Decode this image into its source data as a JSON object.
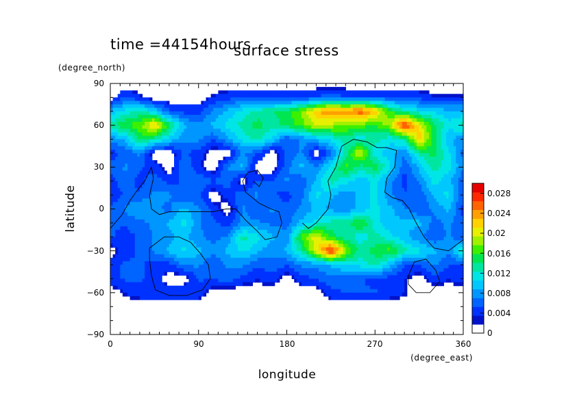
{
  "chart_data": {
    "type": "heatmap",
    "title": "surface stress",
    "time_label": "time =44154hours",
    "xlabel": "longitude",
    "ylabel": "latitude",
    "x_unit": "(degree_east)",
    "y_unit": "(degree_north)",
    "xlim": [
      0,
      360
    ],
    "ylim": [
      -90,
      90
    ],
    "x_ticks": [
      "0",
      "90",
      "180",
      "270",
      "360"
    ],
    "y_ticks": [
      "90",
      "60",
      "30",
      "0",
      "−30",
      "−60",
      "−90"
    ],
    "colorbar": {
      "range": [
        0,
        0.03
      ],
      "tick_labels": [
        "0",
        "0.004",
        "0.008",
        "0.012",
        "0.016",
        "0.02",
        "0.024",
        "0.028"
      ],
      "colors": [
        "#ffffff",
        "#0012c8",
        "#0032ff",
        "#0064ff",
        "#0096ff",
        "#00c8ff",
        "#00e6e6",
        "#00e6a0",
        "#00e650",
        "#3cf000",
        "#a0f000",
        "#e6f000",
        "#ffd200",
        "#ffa000",
        "#ff6400",
        "#ff2800",
        "#e60000"
      ]
    },
    "grid_lon_step": 15,
    "grid_lat_step": 10,
    "grid_lats": [
      90,
      80,
      70,
      60,
      50,
      40,
      30,
      20,
      10,
      0,
      -10,
      -20,
      -30,
      -40,
      -50,
      -60,
      -70,
      -80,
      -90
    ],
    "values": [
      [
        0,
        0,
        0,
        0,
        0,
        0,
        0,
        0,
        0,
        0,
        0,
        0,
        0,
        0,
        0,
        0,
        0,
        0,
        0,
        0,
        0,
        0,
        0,
        0,
        0
      ],
      [
        0,
        0.004,
        0.002,
        0,
        0,
        0,
        0,
        0.002,
        0.003,
        0.004,
        0.004,
        0.003,
        0.003,
        0.003,
        0.004,
        0.005,
        0.004,
        0.004,
        0.004,
        0.004,
        0.003,
        0.003,
        0.002,
        0.002,
        0.002
      ],
      [
        0.008,
        0.01,
        0.012,
        0.009,
        0.004,
        0.003,
        0.003,
        0.006,
        0.008,
        0.01,
        0.012,
        0.013,
        0.014,
        0.017,
        0.022,
        0.025,
        0.024,
        0.026,
        0.022,
        0.015,
        0.012,
        0.01,
        0.009,
        0.008,
        0.008
      ],
      [
        0.012,
        0.015,
        0.016,
        0.022,
        0.014,
        0.008,
        0.006,
        0.008,
        0.01,
        0.012,
        0.014,
        0.012,
        0.014,
        0.016,
        0.019,
        0.018,
        0.017,
        0.016,
        0.015,
        0.018,
        0.028,
        0.02,
        0.014,
        0.01,
        0.012
      ],
      [
        0.006,
        0.008,
        0.014,
        0.012,
        0.009,
        0.006,
        0.006,
        0.004,
        0.007,
        0.01,
        0.012,
        0.009,
        0.004,
        0.006,
        0.008,
        0.01,
        0.012,
        0.01,
        0.012,
        0.01,
        0.012,
        0.022,
        0.014,
        0.008,
        0.006
      ],
      [
        0.003,
        0.004,
        0.006,
        0,
        0,
        0.004,
        0.003,
        0,
        0,
        0.006,
        0.004,
        0,
        0.004,
        0.006,
        0,
        0.005,
        0.012,
        0.02,
        0.01,
        0.008,
        0.006,
        0.012,
        0.014,
        0.01,
        0.005
      ],
      [
        0.004,
        0.006,
        0.004,
        0.003,
        0,
        0.006,
        0.002,
        0,
        0.006,
        0.008,
        0,
        0,
        0.005,
        0.008,
        0.006,
        0.01,
        0.016,
        0.012,
        0.014,
        0.01,
        0.004,
        0.008,
        0.012,
        0.01,
        0.006
      ],
      [
        0.003,
        0.005,
        0.003,
        0.005,
        0.003,
        0.004,
        0.006,
        0.004,
        0.005,
        0,
        0.004,
        0.004,
        0.006,
        0.004,
        0.008,
        0.012,
        0.01,
        0.008,
        0.01,
        0.006,
        0.003,
        0.006,
        0.01,
        0.008,
        0.004
      ],
      [
        0.002,
        0.004,
        0.004,
        0.006,
        0.006,
        0.004,
        0.004,
        0,
        0.003,
        0.005,
        0.006,
        0.004,
        0.003,
        0.005,
        0.01,
        0.008,
        0.006,
        0.008,
        0.01,
        0.006,
        0.004,
        0.004,
        0.008,
        0.01,
        0.004
      ],
      [
        0.004,
        0.006,
        0.008,
        0.006,
        0.005,
        0.008,
        0.006,
        0.003,
        0,
        0.006,
        0.004,
        0.006,
        0.004,
        0.006,
        0.008,
        0.007,
        0.006,
        0.008,
        0.01,
        0.008,
        0.006,
        0.004,
        0.006,
        0.008,
        0.003
      ],
      [
        0.004,
        0.004,
        0.005,
        0.006,
        0.008,
        0.01,
        0.006,
        0.004,
        0.003,
        0.006,
        0.006,
        0.005,
        0.005,
        0.008,
        0.01,
        0.012,
        0.012,
        0.016,
        0.01,
        0.008,
        0.008,
        0.008,
        0.005,
        0.006,
        0.004
      ],
      [
        0.004,
        0.003,
        0.004,
        0.006,
        0.007,
        0.008,
        0.006,
        0.005,
        0.006,
        0.012,
        0.01,
        0.008,
        0.006,
        0.016,
        0.02,
        0.014,
        0.012,
        0.01,
        0.012,
        0.01,
        0.008,
        0.006,
        0.004,
        0.006,
        0.004
      ],
      [
        0,
        0.003,
        0.004,
        0.006,
        0.008,
        0.01,
        0.008,
        0.006,
        0.008,
        0.01,
        0.008,
        0.006,
        0.008,
        0.012,
        0.02,
        0.028,
        0.018,
        0.012,
        0.014,
        0.016,
        0.012,
        0.01,
        0.008,
        0.006,
        0.012
      ],
      [
        0.003,
        0.004,
        0.004,
        0.003,
        0.003,
        0.006,
        0.006,
        0.004,
        0.006,
        0.006,
        0.004,
        0.005,
        0.004,
        0.006,
        0.006,
        0.008,
        0.01,
        0.01,
        0.012,
        0.008,
        0.004,
        0.004,
        0.006,
        0.004,
        0.003
      ],
      [
        0.003,
        0.004,
        0.004,
        0.003,
        0,
        0,
        0.004,
        0.004,
        0.005,
        0.003,
        0.002,
        0.003,
        0,
        0.003,
        0.004,
        0.005,
        0.004,
        0.004,
        0.003,
        0.003,
        0.002,
        0,
        0.003,
        0.002,
        0.003
      ],
      [
        0,
        0.002,
        0.003,
        0.003,
        0.003,
        0.004,
        0.003,
        0,
        0,
        0,
        0,
        0,
        0,
        0,
        0,
        0.003,
        0.004,
        0.004,
        0.004,
        0.003,
        0.002,
        0,
        0,
        0,
        0
      ],
      [
        0,
        0,
        0,
        0,
        0,
        0,
        0,
        0,
        0,
        0,
        0,
        0,
        0,
        0,
        0,
        0,
        0,
        0,
        0,
        0,
        0,
        0,
        0,
        0,
        0
      ],
      [
        0,
        0,
        0,
        0,
        0,
        0,
        0,
        0,
        0,
        0,
        0,
        0,
        0,
        0,
        0,
        0,
        0,
        0,
        0,
        0,
        0,
        0,
        0,
        0,
        0
      ],
      [
        0,
        0,
        0,
        0,
        0,
        0,
        0,
        0,
        0,
        0,
        0,
        0,
        0,
        0,
        0,
        0,
        0,
        0,
        0,
        0,
        0,
        0,
        0,
        0,
        0
      ]
    ],
    "coastlines": [
      [
        [
          0,
          -14
        ],
        [
          12,
          -4
        ],
        [
          20,
          6
        ],
        [
          28,
          14
        ],
        [
          35,
          20
        ],
        [
          42,
          30
        ],
        [
          44,
          22
        ],
        [
          40,
          10
        ],
        [
          42,
          0
        ],
        [
          50,
          -4
        ],
        [
          60,
          -2
        ],
        [
          75,
          -2
        ],
        [
          90,
          -2
        ],
        [
          105,
          -2
        ],
        [
          118,
          0
        ],
        [
          128,
          0
        ],
        [
          138,
          -8
        ],
        [
          150,
          -16
        ],
        [
          158,
          -22
        ],
        [
          170,
          -20
        ],
        [
          175,
          -10
        ],
        [
          172,
          -2
        ],
        [
          164,
          0
        ],
        [
          152,
          4
        ],
        [
          145,
          8
        ],
        [
          138,
          12
        ],
        [
          135,
          20
        ],
        [
          140,
          26
        ],
        [
          150,
          28
        ],
        [
          156,
          22
        ],
        [
          152,
          16
        ],
        [
          146,
          20
        ]
      ],
      [
        [
          40,
          -28
        ],
        [
          55,
          -20
        ],
        [
          70,
          -20
        ],
        [
          82,
          -24
        ],
        [
          92,
          -32
        ],
        [
          100,
          -40
        ],
        [
          102,
          -50
        ],
        [
          94,
          -58
        ],
        [
          78,
          -62
        ],
        [
          60,
          -62
        ],
        [
          46,
          -58
        ],
        [
          42,
          -48
        ],
        [
          40,
          -36
        ],
        [
          40,
          -28
        ]
      ],
      [
        [
          210,
          -10
        ],
        [
          222,
          0
        ],
        [
          225,
          10
        ],
        [
          222,
          20
        ],
        [
          230,
          30
        ],
        [
          236,
          45
        ],
        [
          248,
          50
        ],
        [
          262,
          48
        ],
        [
          272,
          44
        ],
        [
          282,
          44
        ],
        [
          292,
          42
        ],
        [
          290,
          30
        ],
        [
          282,
          22
        ],
        [
          280,
          12
        ],
        [
          288,
          8
        ],
        [
          298,
          6
        ],
        [
          305,
          0
        ],
        [
          312,
          -10
        ],
        [
          320,
          -20
        ],
        [
          330,
          -28
        ],
        [
          345,
          -30
        ],
        [
          360,
          -22
        ]
      ],
      [
        [
          210,
          -10
        ],
        [
          202,
          -14
        ],
        [
          196,
          -10
        ]
      ],
      [
        [
          304,
          -48
        ],
        [
          310,
          -38
        ],
        [
          322,
          -36
        ],
        [
          332,
          -44
        ],
        [
          336,
          -52
        ],
        [
          326,
          -60
        ],
        [
          312,
          -60
        ],
        [
          304,
          -54
        ],
        [
          304,
          -48
        ]
      ]
    ]
  }
}
